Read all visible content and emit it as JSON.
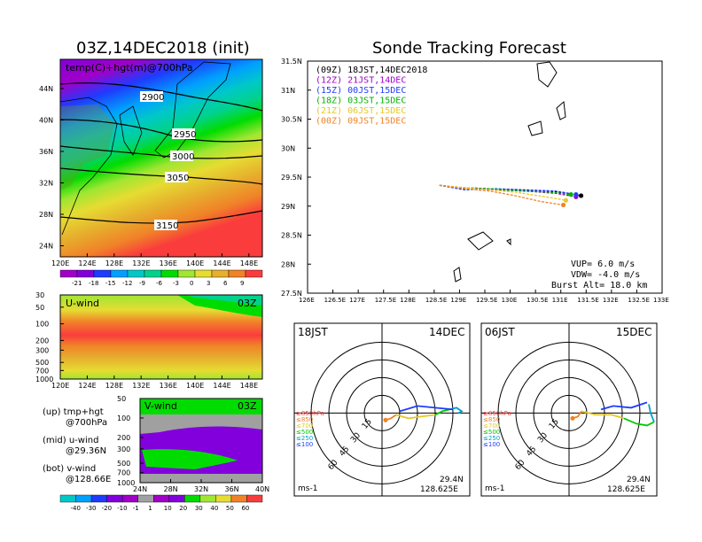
{
  "left_title": "03Z,14DEC2018 (init)",
  "right_title": "Sonde Tracking Forecast",
  "map700": {
    "panel_label": "temp(C)+hgt(m)@700hPa",
    "contours": [
      "2900",
      "2950",
      "3000",
      "3050",
      "3150"
    ],
    "lat_ticks": [
      "44N",
      "40N",
      "36N",
      "32N",
      "28N",
      "24N"
    ],
    "lon_ticks": [
      "120E",
      "124E",
      "128E",
      "132E",
      "136E",
      "140E",
      "144E",
      "148E"
    ],
    "colorbar_labels": [
      "-21",
      "-18",
      "-15",
      "-12",
      "-9",
      "-6",
      "-3",
      "0",
      "3",
      "6",
      "9"
    ],
    "colorbar_colors": [
      "#a000c8",
      "#8200dc",
      "#1e3cff",
      "#00a0ff",
      "#00c8c8",
      "#00d28c",
      "#00dc00",
      "#a0e632",
      "#e6dc32",
      "#e6af2d",
      "#f08228",
      "#fa3c3c"
    ]
  },
  "uwind": {
    "panel_label": "U-wind",
    "time_label": "03Z",
    "p_ticks": [
      "30",
      "50",
      "100",
      "200",
      "300",
      "500",
      "700",
      "1000"
    ],
    "lon_ticks": [
      "120E",
      "124E",
      "128E",
      "132E",
      "136E",
      "140E",
      "144E",
      "148E"
    ]
  },
  "vwind": {
    "panel_label": "V-wind",
    "time_label": "03Z",
    "p_ticks": [
      "50",
      "100",
      "200",
      "300",
      "500",
      "700",
      "1000"
    ],
    "lat_ticks": [
      "24N",
      "28N",
      "32N",
      "36N",
      "40N"
    ],
    "colorbar_labels": [
      "-40",
      "-30",
      "-20",
      "-10",
      "-1",
      "1",
      "10",
      "20",
      "30",
      "40",
      "50",
      "60"
    ],
    "colorbar_colors": [
      "#00c8c8",
      "#00a0ff",
      "#1e3cff",
      "#8200dc",
      "#a000c8",
      "#a0a0a0",
      "#a000c8",
      "#8200dc",
      "#00dc00",
      "#a0e632",
      "#e6dc32",
      "#f08228",
      "#fa3c3c"
    ]
  },
  "legend_notes": {
    "up": "(up) tmp+hgt",
    "up2": "@700hPa",
    "mid": "(mid) u-wind",
    "mid2": "@29.36N",
    "bot": "(bot) v-wind",
    "bot2": "@128.66E"
  },
  "tracking": {
    "lat_ticks": [
      "31.5N",
      "31N",
      "30.5N",
      "30N",
      "29.5N",
      "29N",
      "28.5N",
      "28N",
      "27.5N"
    ],
    "lon_ticks": [
      "126E",
      "126.5E",
      "127E",
      "127.5E",
      "128E",
      "128.5E",
      "129E",
      "129.5E",
      "130E",
      "130.5E",
      "131E",
      "131.5E",
      "132E",
      "132.5E",
      "133E"
    ],
    "legend": [
      {
        "label": "(09Z)  18JST,14DEC2018",
        "color": "#000000"
      },
      {
        "label": "(12Z)  21JST,14DEC",
        "color": "#a000c8"
      },
      {
        "label": "(15Z)  00JST,15DEC",
        "color": "#1e3cff"
      },
      {
        "label": "(18Z)  03JST,15DEC",
        "color": "#00b400"
      },
      {
        "label": "(21Z)  06JST,15DEC",
        "color": "#e6c828"
      },
      {
        "label": "(00Z)  09JST,15DEC",
        "color": "#f08228"
      }
    ],
    "vup": "VUP=  6.0  m/s",
    "vdw": "VDW=  -4.0  m/s",
    "burst": "Burst Alt=  18.0  km"
  },
  "hodo_left": {
    "time": "18JST",
    "date": "14DEC",
    "lat": "29.4N",
    "lon": "128.625E",
    "unit": "ms-1",
    "rings": [
      "15",
      "30",
      "45",
      "60"
    ],
    "levels": [
      {
        "label": "≥850hPa",
        "color": "#fa3c3c"
      },
      {
        "label": "≤850",
        "color": "#f08228"
      },
      {
        "label": "≤700",
        "color": "#e6c828"
      },
      {
        "label": "≤500",
        "color": "#00c800"
      },
      {
        "label": "≤250",
        "color": "#00a0c8"
      },
      {
        "label": "≤100",
        "color": "#1e3cff"
      }
    ]
  },
  "hodo_right": {
    "time": "06JST",
    "date": "15DEC",
    "lat": "29.4N",
    "lon": "128.625E",
    "unit": "ms-1",
    "rings": [
      "15",
      "30",
      "45",
      "60"
    ],
    "levels": [
      {
        "label": "≥850hPa",
        "color": "#fa3c3c"
      },
      {
        "label": "≤850",
        "color": "#f08228"
      },
      {
        "label": "≤700",
        "color": "#e6c828"
      },
      {
        "label": "≤500",
        "color": "#00c800"
      },
      {
        "label": "≤250",
        "color": "#00a0c8"
      },
      {
        "label": "≤100",
        "color": "#1e3cff"
      }
    ]
  },
  "chart_data": [
    {
      "type": "heatmap",
      "title": "temp(C)+hgt(m)@700hPa",
      "xlim": [
        120,
        150
      ],
      "ylim": [
        22,
        47
      ],
      "contour_values": [
        2900,
        2950,
        3000,
        3050,
        3150
      ]
    },
    {
      "type": "heatmap",
      "title": "U-wind",
      "xlim": [
        120,
        150
      ],
      "ylim": [
        1000,
        30
      ],
      "log_scale_y": true
    },
    {
      "type": "heatmap",
      "title": "V-wind",
      "xlim": [
        24,
        40
      ],
      "ylim": [
        1000,
        50
      ],
      "log_scale_y": true
    },
    {
      "type": "line",
      "title": "Sonde Tracking Forecast",
      "xlim": [
        126,
        133
      ],
      "ylim": [
        27.5,
        31.5
      ],
      "series": [
        {
          "name": "(09Z) 18JST,14DEC2018",
          "color": "#000000",
          "x": [
            128.6,
            129.0,
            129.6,
            130.2,
            130.9,
            131.4
          ],
          "y": [
            29.36,
            29.32,
            29.3,
            29.28,
            29.25,
            29.18
          ]
        },
        {
          "name": "(12Z) 21JST,14DEC",
          "color": "#a000c8",
          "x": [
            128.6,
            129.1,
            129.7,
            130.3,
            130.9,
            131.3
          ],
          "y": [
            29.36,
            29.3,
            29.28,
            29.26,
            29.22,
            29.16
          ]
        },
        {
          "name": "(15Z) 00JST,15DEC",
          "color": "#1e3cff",
          "x": [
            128.6,
            129.1,
            129.7,
            130.3,
            130.9,
            131.3
          ],
          "y": [
            29.36,
            29.28,
            29.3,
            29.28,
            29.26,
            29.2
          ]
        },
        {
          "name": "(18Z) 03JST,15DEC",
          "color": "#00b400",
          "x": [
            128.6,
            129.1,
            129.6,
            130.2,
            130.8,
            131.2
          ],
          "y": [
            29.36,
            29.3,
            29.3,
            29.26,
            29.24,
            29.2
          ]
        },
        {
          "name": "(21Z) 06JST,15DEC",
          "color": "#e6c828",
          "x": [
            128.6,
            129.1,
            129.6,
            130.1,
            130.7,
            131.1
          ],
          "y": [
            29.36,
            29.32,
            29.28,
            29.24,
            29.16,
            29.1
          ]
        },
        {
          "name": "(00Z) 09JST,15DEC",
          "color": "#f08228",
          "x": [
            128.6,
            129.1,
            129.6,
            130.1,
            130.6,
            131.05
          ],
          "y": [
            29.36,
            29.3,
            29.26,
            29.18,
            29.08,
            29.02
          ]
        }
      ]
    }
  ]
}
